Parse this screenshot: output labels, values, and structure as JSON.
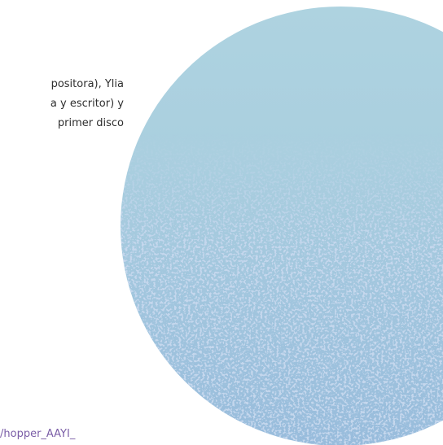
{
  "paragraph": {
    "lines": [
      "positora),  Ylia",
      "a y escritor) y",
      "primer disco"
    ]
  },
  "link": {
    "text": "/hopper_AAYI_"
  }
}
